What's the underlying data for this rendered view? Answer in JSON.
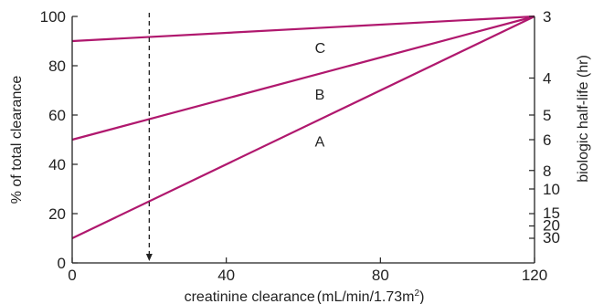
{
  "chart_data": {
    "type": "line",
    "xlabel": "creatinine clearance",
    "xlabel_units": "(mL/min/1.73m",
    "xlabel_units_sup": "2",
    "xlabel_units_close": ")",
    "ylabel": "% of total clearance",
    "y2label": "biologic half-life (hr)",
    "xlim": [
      0,
      120
    ],
    "ylim": [
      0,
      100
    ],
    "x_ticks": [
      0,
      40,
      80,
      120
    ],
    "y_ticks": [
      0,
      20,
      40,
      60,
      80,
      100
    ],
    "y2_ticks": [
      {
        "label": "3",
        "clearance_pct": 100
      },
      {
        "label": "4",
        "clearance_pct": 75
      },
      {
        "label": "5",
        "clearance_pct": 60
      },
      {
        "label": "6",
        "clearance_pct": 50
      },
      {
        "label": "8",
        "clearance_pct": 37.5
      },
      {
        "label": "10",
        "clearance_pct": 30
      },
      {
        "label": "15",
        "clearance_pct": 20
      },
      {
        "label": "20",
        "clearance_pct": 15
      },
      {
        "label": "30",
        "clearance_pct": 10
      }
    ],
    "series": [
      {
        "name": "A",
        "x": [
          0,
          120
        ],
        "y": [
          10,
          100
        ],
        "label_x": 63
      },
      {
        "name": "B",
        "x": [
          0,
          120
        ],
        "y": [
          50,
          100
        ],
        "label_x": 63
      },
      {
        "name": "C",
        "x": [
          0,
          120
        ],
        "y": [
          90,
          100
        ],
        "label_x": 63
      }
    ],
    "reference_line": {
      "x": 20,
      "from_y": 100,
      "to_y": 0,
      "style": "dashed-arrow"
    },
    "line_color": "#b0186e",
    "grid": false
  }
}
